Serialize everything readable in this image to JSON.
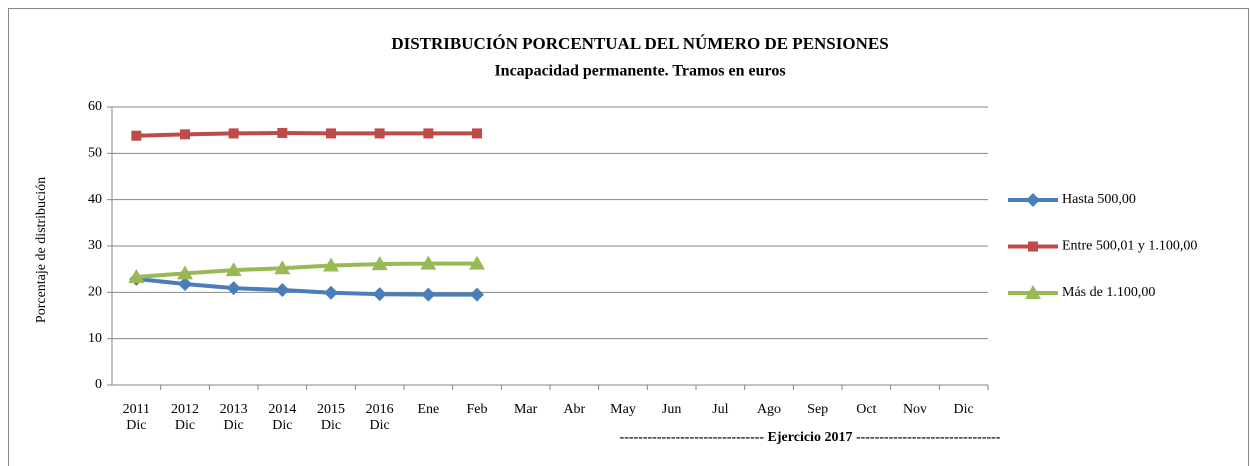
{
  "chart_data": {
    "type": "line",
    "title": "DISTRIBUCIÓN PORCENTUAL DEL NÚMERO DE PENSIONES",
    "subtitle": "Incapacidad permanente. Tramos en euros",
    "y_label": "Porcentaje de distribución",
    "annotation": "------------------------------- Ejercicio 2017 -------------------------------",
    "categories": [
      "2011 Dic",
      "2012 Dic",
      "2013 Dic",
      "2014 Dic",
      "2015 Dic",
      "2016 Dic",
      "Ene",
      "Feb",
      "Mar",
      "Abr",
      "May",
      "Jun",
      "Jul",
      "Ago",
      "Sep",
      "Oct",
      "Nov",
      "Dic"
    ],
    "series": [
      {
        "name": "Hasta 500,00",
        "color": "#4a7ebb",
        "marker": "diamond",
        "values": [
          22.9,
          21.8,
          20.9,
          20.5,
          19.9,
          19.6,
          19.5,
          19.5,
          null,
          null,
          null,
          null,
          null,
          null,
          null,
          null,
          null,
          null
        ]
      },
      {
        "name": "Entre 500,01 y 1.100,00",
        "color": "#be4b48",
        "marker": "square",
        "values": [
          53.8,
          54.1,
          54.3,
          54.4,
          54.3,
          54.3,
          54.3,
          54.3,
          null,
          null,
          null,
          null,
          null,
          null,
          null,
          null,
          null,
          null
        ]
      },
      {
        "name": "Más de 1.100,00",
        "color": "#98b954",
        "marker": "triangle",
        "values": [
          23.3,
          24.1,
          24.8,
          25.2,
          25.8,
          26.1,
          26.2,
          26.2,
          null,
          null,
          null,
          null,
          null,
          null,
          null,
          null,
          null,
          null
        ]
      }
    ],
    "ylim": [
      0,
      60
    ],
    "yticks": [
      0,
      10,
      20,
      30,
      40,
      50,
      60
    ],
    "grid": true,
    "legend": "right"
  }
}
